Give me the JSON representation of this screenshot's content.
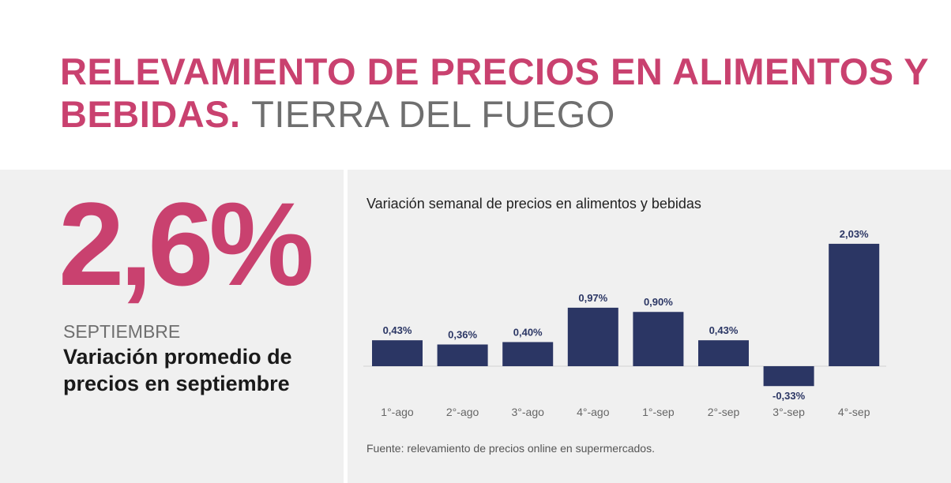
{
  "header": {
    "title_main": "RELEVAMIENTO DE PRECIOS EN ALIMENTOS Y BEBIDAS.",
    "title_place": "TIERRA DEL FUEGO"
  },
  "kpi": {
    "value": "2,6%",
    "month": "SEPTIEMBRE",
    "description": "Variación promedio de precios en septiembre"
  },
  "colors": {
    "accent": "#c9416f",
    "bar": "#2b3664",
    "panel": "#f0f0f0"
  },
  "chart_data": {
    "type": "bar",
    "title": "Variación semanal de precios en alimentos y bebidas",
    "categories": [
      "1°-ago",
      "2°-ago",
      "3°-ago",
      "4°-ago",
      "1°-sep",
      "2°-sep",
      "3°-sep",
      "4°-sep"
    ],
    "values": [
      0.43,
      0.36,
      0.4,
      0.97,
      0.9,
      0.43,
      -0.33,
      2.03
    ],
    "labels": [
      "0,43%",
      "0,36%",
      "0,40%",
      "0,97%",
      "0,90%",
      "0,43%",
      "-0,33%",
      "2,03%"
    ],
    "xlabel": "",
    "ylabel": "",
    "grid": false,
    "source": "Fuente: relevamiento de precios online en supermercados."
  }
}
